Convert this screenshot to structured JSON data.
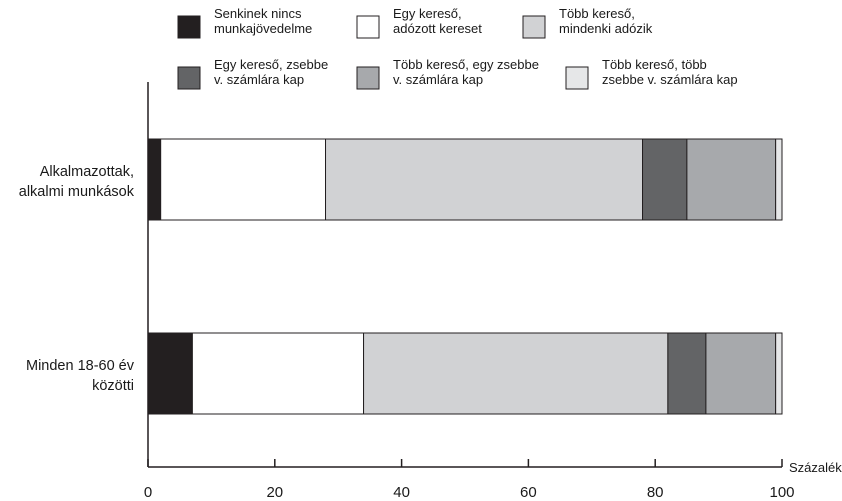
{
  "chart_data": {
    "type": "bar",
    "orientation": "horizontal",
    "stacked": true,
    "categories": [
      [
        "Alkalmazottak,",
        "alkalmi munkások"
      ],
      [
        "Minden 18-60 év",
        "közötti"
      ]
    ],
    "series": [
      {
        "name": [
          "Senkinek nincs",
          "munkajövedelme"
        ],
        "color": "#231f20",
        "values": [
          2,
          7
        ]
      },
      {
        "name": [
          "Egy kereső,",
          "adózott kereset"
        ],
        "color": "#ffffff",
        "values": [
          26,
          27
        ]
      },
      {
        "name": [
          "Több kereső,",
          "mindenki adózik"
        ],
        "color": "#d1d2d4",
        "values": [
          50,
          48
        ]
      },
      {
        "name": [
          "Egy kereső, zsebbe",
          "v. számlára kap"
        ],
        "color": "#636466",
        "values": [
          7,
          6
        ]
      },
      {
        "name": [
          "Több kereső, egy zsebbe",
          "v. számlára kap"
        ],
        "color": "#a7a9ac",
        "values": [
          14,
          11
        ]
      },
      {
        "name": [
          "Több kereső, több",
          "zsebbe v. számlára kap"
        ],
        "color": "#e6e7e8",
        "values": [
          1,
          1
        ]
      }
    ],
    "xlabel": "Százalék",
    "ylabel": "",
    "xlim": [
      0,
      100
    ],
    "xticks": [
      0,
      20,
      40,
      60,
      80,
      100
    ],
    "grid": false,
    "legend_position": "top"
  }
}
